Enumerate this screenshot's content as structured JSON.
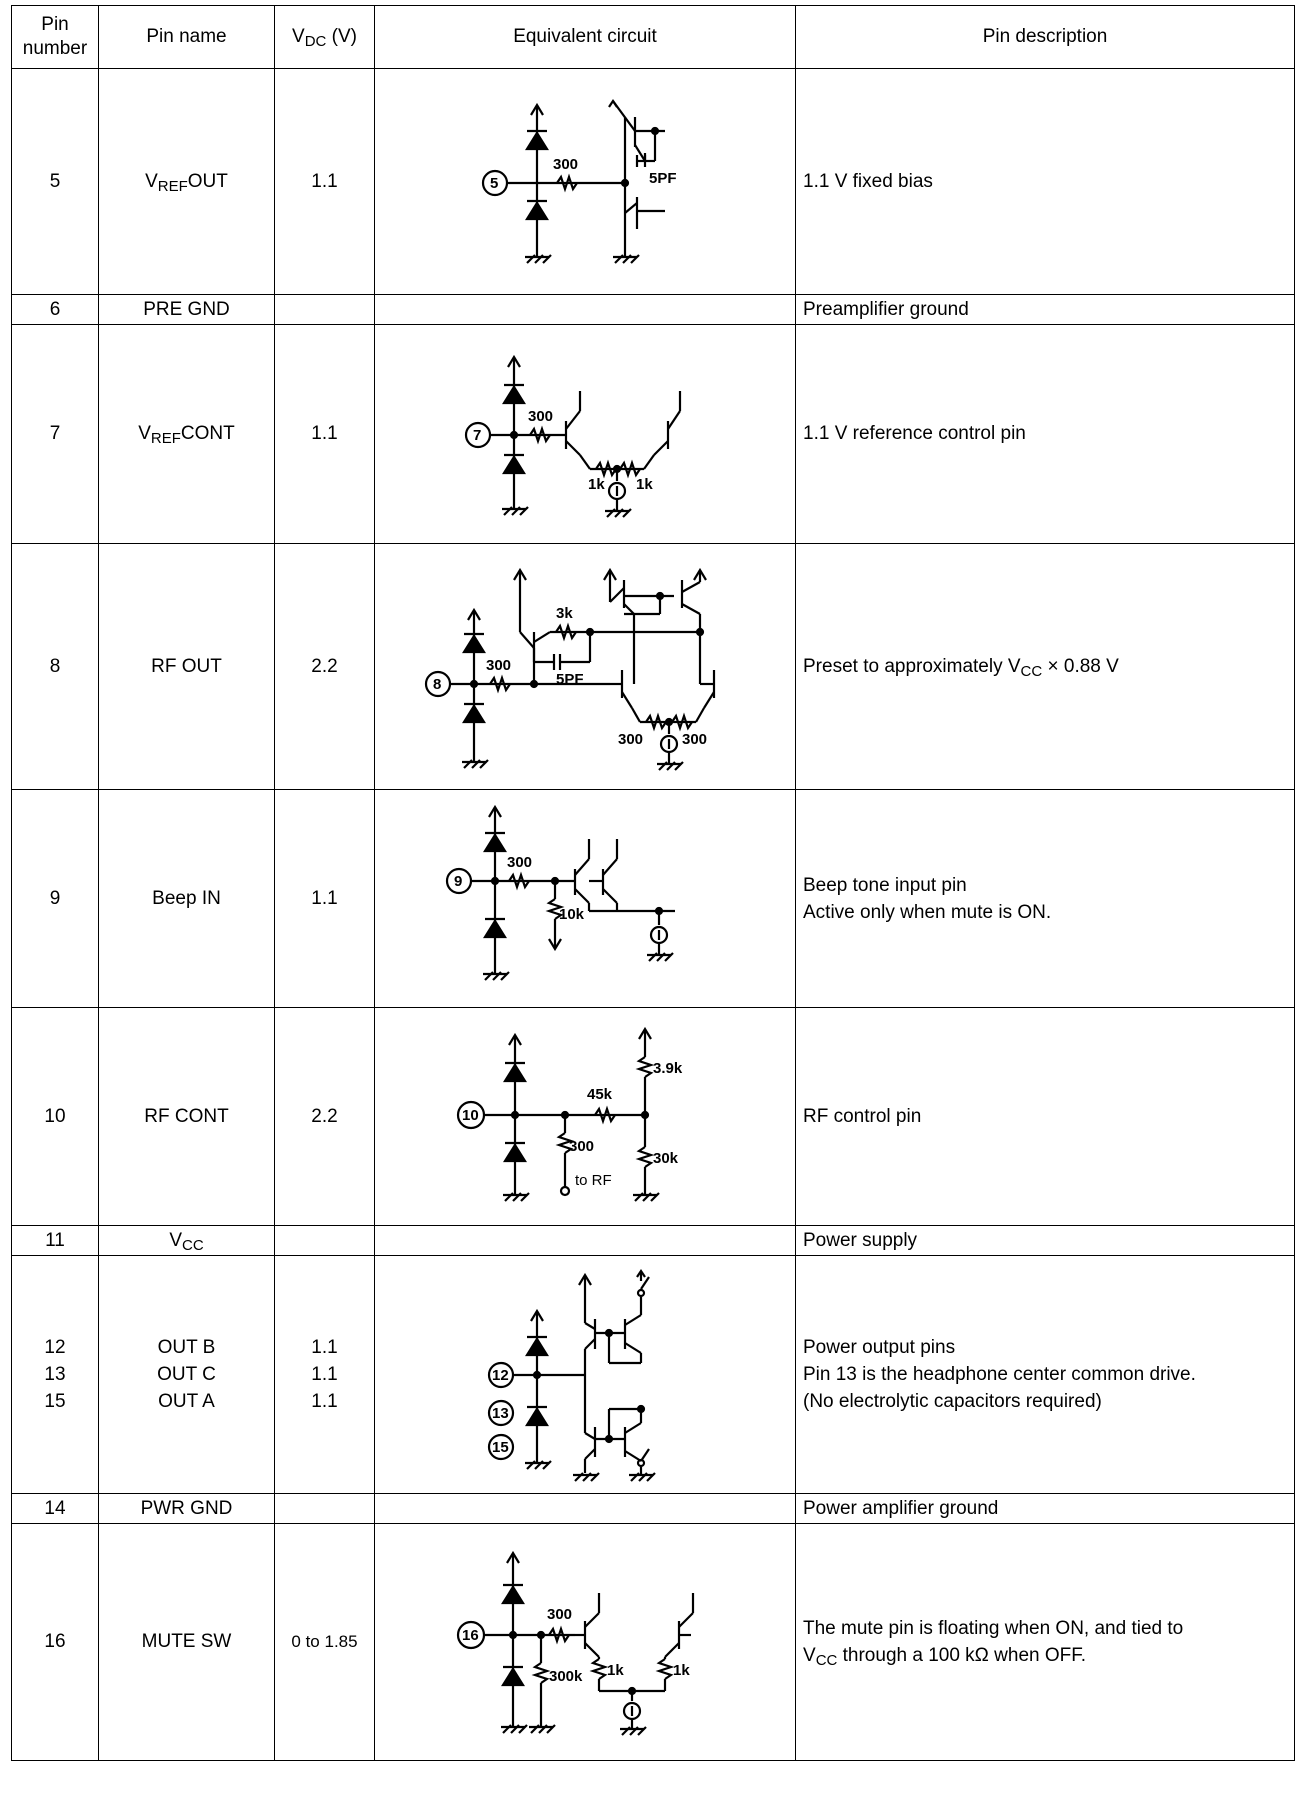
{
  "header": {
    "pin_number_l1": "Pin",
    "pin_number_l2": "number",
    "pin_name": "Pin name",
    "vdc_base": "V",
    "vdc_sub": "DC",
    "vdc_unit": " (V)",
    "equivalent_circuit": "Equivalent circuit",
    "pin_description": "Pin description"
  },
  "rows": [
    {
      "pin": "5",
      "name_base": "V",
      "name_sub": "REF",
      "name_rest": "OUT",
      "vdc": "1.1",
      "desc": "1.1 V fixed bias",
      "circuit": {
        "pin_label": "5",
        "labels": [
          "300",
          "5PF"
        ]
      }
    },
    {
      "pin": "6",
      "name": "PRE GND",
      "vdc": "",
      "desc": "Preamplifier ground"
    },
    {
      "pin": "7",
      "name_base": "V",
      "name_sub": "REF",
      "name_rest": "CONT",
      "vdc": "1.1",
      "desc": "1.1 V reference control pin",
      "circuit": {
        "pin_label": "7",
        "labels": [
          "300",
          "1k",
          "1k"
        ]
      }
    },
    {
      "pin": "8",
      "name": "RF OUT",
      "vdc": "2.2",
      "desc_pre": "Preset to approximately V",
      "desc_sub": "CC",
      "desc_post": " × 0.88 V",
      "circuit": {
        "pin_label": "8",
        "labels": [
          "3k",
          "5PF",
          "300",
          "300",
          "300"
        ]
      }
    },
    {
      "pin": "9",
      "name": "Beep IN",
      "vdc": "1.1",
      "desc_l1": "Beep tone input pin",
      "desc_l2": "Active only when mute is ON.",
      "circuit": {
        "pin_label": "9",
        "labels": [
          "300",
          "10k"
        ]
      }
    },
    {
      "pin": "10",
      "name": "RF CONT",
      "vdc": "2.2",
      "desc": "RF control pin",
      "circuit": {
        "pin_label": "10",
        "labels": [
          "3.9k",
          "45k",
          "300",
          "30k",
          "to RF"
        ]
      }
    },
    {
      "pin": "11",
      "name_base": "V",
      "name_sub": "CC",
      "vdc": "",
      "desc": "Power supply"
    },
    {
      "pins": [
        "12",
        "13",
        "15"
      ],
      "names": [
        "OUT B",
        "OUT C",
        "OUT A"
      ],
      "vdcs": [
        "1.1",
        "1.1",
        "1.1"
      ],
      "desc_l1": "Power output pins",
      "desc_l2": "Pin 13 is the headphone center common drive.",
      "desc_l3": "(No electrolytic capacitors required)",
      "circuit": {
        "pin_labels": [
          "12",
          "13",
          "15"
        ]
      }
    },
    {
      "pin": "14",
      "name": "PWR GND",
      "vdc": "",
      "desc": "Power amplifier ground"
    },
    {
      "pin": "16",
      "name": "MUTE SW",
      "vdc": "0 to 1.85",
      "desc_l1": "The mute pin is floating when ON, and tied to",
      "desc_l2_pre": "V",
      "desc_l2_sub": "CC",
      "desc_l2_post": " through a 100 kΩ when OFF.",
      "circuit": {
        "pin_label": "16",
        "labels": [
          "300",
          "300k",
          "1k",
          "1k"
        ]
      }
    }
  ]
}
